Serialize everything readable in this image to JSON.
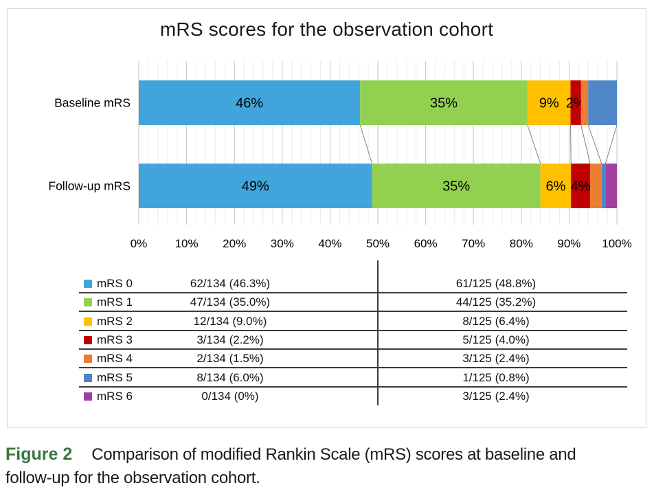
{
  "figure": {
    "caption_label": "Figure 2",
    "caption_label_color": "#35793C",
    "caption_text": "Comparison of modified Rankin Scale (mRS) scores at baseline and follow-up for the observation cohort."
  },
  "chart_data": {
    "type": "bar",
    "orientation": "horizontal",
    "stacked": true,
    "title": "mRS scores for the observation cohort",
    "categories": [
      "Baseline mRS",
      "Follow-up mRS"
    ],
    "x_axis": {
      "min": 0,
      "max": 100,
      "ticks": [
        "0%",
        "10%",
        "20%",
        "30%",
        "40%",
        "50%",
        "60%",
        "70%",
        "80%",
        "90%",
        "100%"
      ],
      "minor_grid_step": 2,
      "major_grid_step": 10
    },
    "grid": {
      "minor_color": "#ebebeb",
      "major_color": "#c4c4c4",
      "connector_color": "#808080"
    },
    "series": [
      {
        "name": "mRS 0",
        "color": "#41a5db",
        "values": [
          46.3,
          48.8
        ],
        "labels": [
          "46%",
          "49%"
        ]
      },
      {
        "name": "mRS 1",
        "color": "#92d050",
        "values": [
          35.0,
          35.2
        ],
        "labels": [
          "35%",
          "35%"
        ]
      },
      {
        "name": "mRS 2",
        "color": "#ffc000",
        "values": [
          9.0,
          6.4
        ],
        "labels": [
          "9%",
          "6%"
        ]
      },
      {
        "name": "mRS 3",
        "color": "#c00000",
        "values": [
          2.2,
          4.0
        ],
        "labels": [
          "2%",
          "4%"
        ]
      },
      {
        "name": "mRS 4",
        "color": "#ed7d31",
        "values": [
          1.5,
          2.4
        ],
        "labels": [
          "",
          ""
        ]
      },
      {
        "name": "mRS 5",
        "color": "#4e86c8",
        "values": [
          6.0,
          0.8
        ],
        "labels": [
          "",
          ""
        ]
      },
      {
        "name": "mRS 6",
        "color": "#a240a0",
        "values": [
          0.0,
          2.4
        ],
        "labels": [
          "",
          ""
        ]
      }
    ],
    "table": {
      "rows": [
        {
          "label": "mRS 0",
          "baseline": "62/134 (46.3%)",
          "followup": "61/125 (48.8%)"
        },
        {
          "label": "mRS 1",
          "baseline": "47/134 (35.0%)",
          "followup": "44/125 (35.2%)"
        },
        {
          "label": "mRS 2",
          "baseline": "12/134 (9.0%)",
          "followup": "8/125 (6.4%)"
        },
        {
          "label": "mRS 3",
          "baseline": "3/134 (2.2%)",
          "followup": "5/125 (4.0%)"
        },
        {
          "label": "mRS 4",
          "baseline": "2/134 (1.5%)",
          "followup": "3/125 (2.4%)"
        },
        {
          "label": "mRS 5",
          "baseline": "8/134 (6.0%)",
          "followup": "1/125 (0.8%)"
        },
        {
          "label": "mRS 6",
          "baseline": "0/134 (0%)",
          "followup": "3/125 (2.4%)"
        }
      ]
    }
  }
}
